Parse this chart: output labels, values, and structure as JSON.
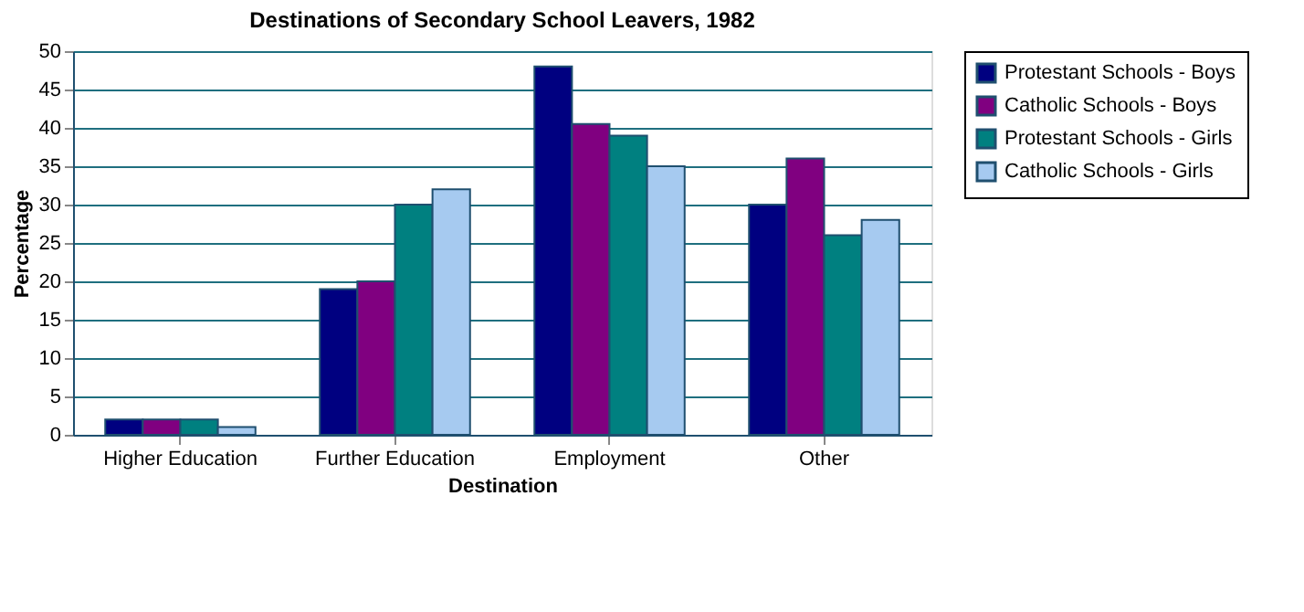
{
  "chart_data": {
    "type": "bar",
    "title": "Destinations of Secondary School Leavers, 1982",
    "xlabel": "Destination",
    "ylabel": "Percentage",
    "categories": [
      "Higher Education",
      "Further Education",
      "Employment",
      "Other"
    ],
    "series": [
      {
        "name": "Protestant Schools - Boys",
        "color": "#000080",
        "values": [
          2,
          19,
          48,
          30
        ]
      },
      {
        "name": "Catholic Schools - Boys",
        "color": "#800080",
        "values": [
          2,
          20,
          40.5,
          36
        ]
      },
      {
        "name": "Protestant Schools - Girls",
        "color": "#008080",
        "values": [
          2,
          30,
          39,
          26
        ]
      },
      {
        "name": "Catholic Schools - Girls",
        "color": "#a6caf0",
        "values": [
          1,
          32,
          35,
          28
        ]
      }
    ],
    "ylim": [
      0,
      50
    ],
    "yticks": [
      0,
      5,
      10,
      15,
      20,
      25,
      30,
      35,
      40,
      45,
      50
    ],
    "grid": "y",
    "legend": "right"
  }
}
